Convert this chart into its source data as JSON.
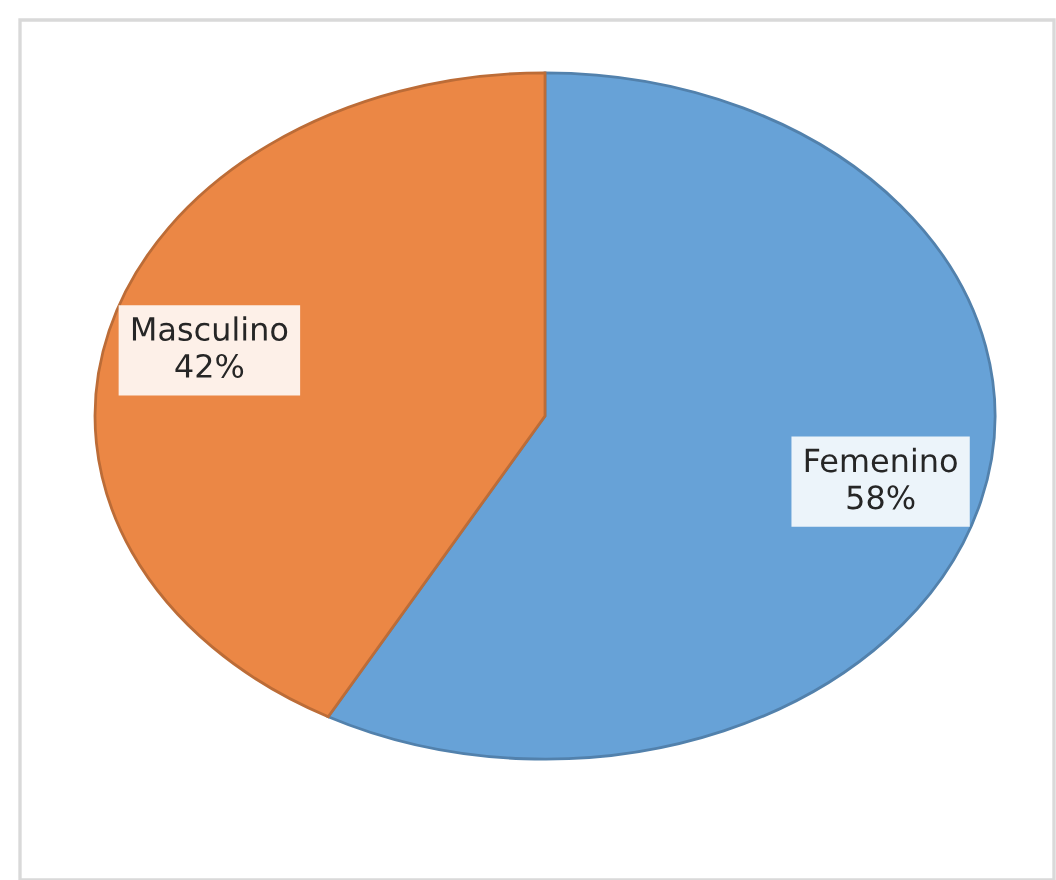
{
  "chart_data": {
    "type": "pie",
    "categories": [
      "Femenino",
      "Masculino"
    ],
    "values": [
      58,
      42
    ],
    "colors": [
      "#67a2d7",
      "#eb8745"
    ],
    "value_labels": [
      "58%",
      "42%"
    ]
  }
}
